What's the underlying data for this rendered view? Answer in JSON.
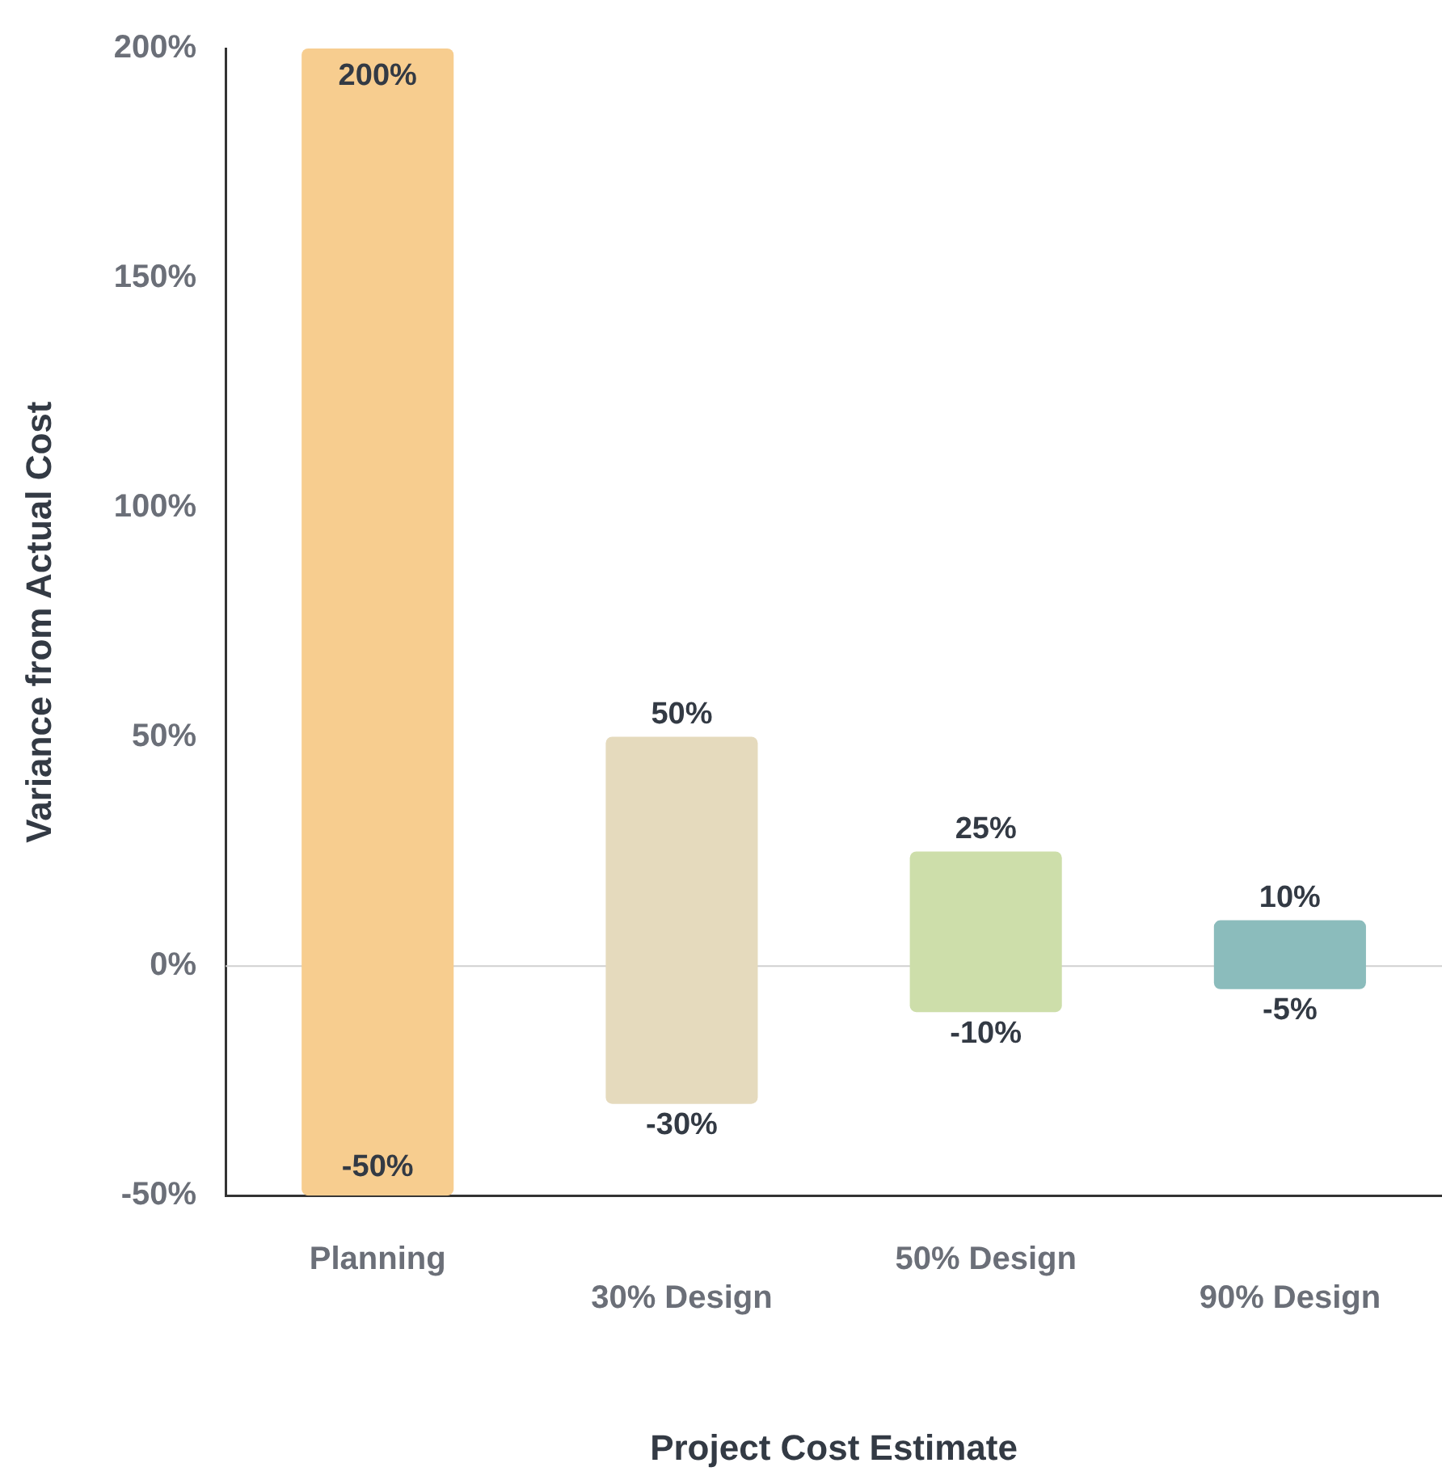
{
  "chart_data": {
    "type": "bar",
    "xlabel": "Project Cost Estimate",
    "ylabel": "Variance from Actual Cost",
    "categories": [
      "Planning",
      "30% Design",
      "50% Design",
      "90% Design"
    ],
    "base": [
      -50,
      -30,
      -10,
      -5
    ],
    "values": [
      250,
      80,
      35,
      15
    ],
    "colors": [
      "#f7cd8f",
      "#e5dabd",
      "#cddeaa",
      "#8bbcbc"
    ],
    "ylim": [
      -50,
      200
    ],
    "yticks": [
      {
        "value": -50,
        "label": "-50%"
      },
      {
        "value": 0,
        "label": "0%"
      },
      {
        "value": 50,
        "label": "50%"
      },
      {
        "value": 100,
        "label": "100%"
      },
      {
        "value": 150,
        "label": "150%"
      },
      {
        "value": 200,
        "label": "200%"
      }
    ],
    "ref_lines": [
      {
        "axis": "y",
        "value": 0,
        "color": "#d0d0d0"
      }
    ],
    "annotations": [
      {
        "text": "200%",
        "x": "Planning",
        "y": 200
      },
      {
        "text": "-50%",
        "x": "Planning",
        "y": -50
      },
      {
        "text": "50%",
        "x": "30% Design",
        "y": 50
      },
      {
        "text": "-30%",
        "x": "30% Design",
        "y": -30
      },
      {
        "text": "25%",
        "x": "50% Design",
        "y": 25
      },
      {
        "text": "-10%",
        "x": "50% Design",
        "y": -10
      },
      {
        "text": "10%",
        "x": "90% Design",
        "y": 10
      },
      {
        "text": "-5%",
        "x": "90% Design",
        "y": -5
      }
    ]
  }
}
